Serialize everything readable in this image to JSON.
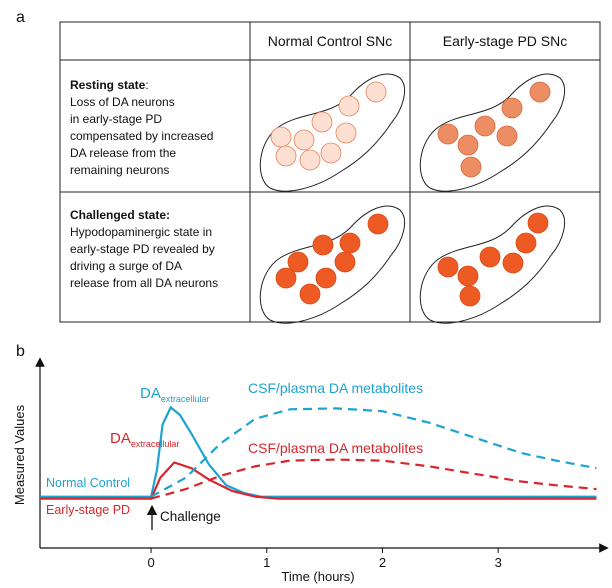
{
  "panel_a": {
    "label": "a",
    "header": [
      "Normal Control SNc",
      "Early-stage PD SNc"
    ],
    "rows": [
      {
        "title": "Resting state",
        "title_suffix": ":",
        "lines": [
          "Loss of DA neurons",
          "in early-stage PD",
          "compensated by increased",
          "DA release from the",
          "remaining neurons"
        ]
      },
      {
        "title": "Challenged state:",
        "lines": [
          "Hypodopaminergic state in",
          "early-stage PD revealed by",
          "driving a surge of DA",
          "release from all DA neurons"
        ]
      }
    ]
  },
  "panel_b_label": "b",
  "chart_data": {
    "type": "line",
    "x_label": "Time (hours)",
    "y_label": "Measured Values",
    "xlim": [
      -0.96,
      3.88
    ],
    "ylim": [
      0,
      10
    ],
    "xticks": [
      0,
      1,
      2,
      3
    ],
    "series": [
      {
        "color": "#1ca3d0",
        "dash": false,
        "x": [
          -0.96,
          0,
          0.05,
          0.1,
          0.17,
          0.25,
          0.35,
          0.5,
          0.65,
          0.8,
          0.95,
          1.1,
          3.85
        ],
        "values": [
          2.7,
          2.7,
          4.1,
          6.5,
          7.4,
          7.0,
          6.0,
          4.4,
          3.3,
          2.9,
          2.7,
          2.7,
          2.7
        ]
      },
      {
        "color": "#d8262c",
        "dash": false,
        "x": [
          -0.96,
          0,
          0.08,
          0.2,
          0.35,
          0.5,
          0.7,
          0.9,
          1.1,
          3.85
        ],
        "values": [
          2.6,
          2.6,
          3.7,
          4.5,
          4.2,
          3.6,
          3.0,
          2.7,
          2.6,
          2.6
        ]
      },
      {
        "color": "#1ca3d0",
        "dash": true,
        "x": [
          0,
          0.3,
          0.6,
          0.9,
          1.2,
          1.6,
          2.0,
          2.4,
          2.8,
          3.2,
          3.5,
          3.85
        ],
        "values": [
          2.7,
          3.7,
          5.5,
          6.8,
          7.3,
          7.35,
          7.2,
          6.6,
          5.8,
          5.0,
          4.6,
          4.2
        ]
      },
      {
        "color": "#d8262c",
        "dash": true,
        "x": [
          0,
          0.3,
          0.6,
          0.9,
          1.2,
          1.6,
          2.0,
          2.4,
          2.8,
          3.2,
          3.5,
          3.85
        ],
        "values": [
          2.6,
          3.1,
          3.8,
          4.3,
          4.6,
          4.65,
          4.6,
          4.3,
          3.9,
          3.5,
          3.3,
          3.1
        ]
      }
    ],
    "annotations": [
      {
        "text": "DA",
        "subscript": "extracellular",
        "color": "#1ca3d0"
      },
      {
        "text": "DA",
        "subscript": "extracellular",
        "color": "#d8262c"
      },
      {
        "text": "CSF/plasma DA metabolites",
        "color": "#1ca3d0"
      },
      {
        "text": "CSF/plasma DA metabolites",
        "color": "#d8262c"
      },
      {
        "text": "Normal Control",
        "color": "#1ca3d0"
      },
      {
        "text": "Early-stage PD",
        "color": "#d8262c"
      },
      {
        "text": "Challenge",
        "color": "#111111"
      }
    ]
  }
}
